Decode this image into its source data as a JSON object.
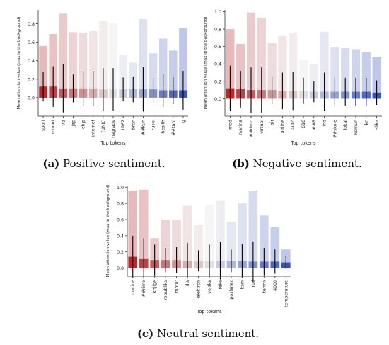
{
  "chart_data": [
    {
      "type": "bar",
      "panel": "a",
      "xlabel": "Top tokens",
      "ylabel": "Mean attention value (max in the background)",
      "ylim": [
        -0.2,
        0.95
      ],
      "yticks": [
        "0.0",
        "0.2",
        "0.4",
        "0.6",
        "0.8"
      ],
      "ytick_values": [
        0.0,
        0.2,
        0.4,
        0.6,
        0.8
      ],
      "categories": [
        "sport",
        "monet",
        "viz",
        "jap",
        "chip",
        "internet",
        "[UNK]",
        "nagrade",
        "1962",
        "bron",
        "##kun",
        "ruski",
        "health",
        "##tani",
        "ig"
      ],
      "series": [
        {
          "values": [
            0.56,
            0.69,
            0.91,
            0.71,
            0.7,
            0.72,
            0.83,
            0.81,
            0.46,
            0.38,
            0.85,
            0.48,
            0.64,
            0.51,
            0.75
          ]
        },
        {
          "values": [
            0.12,
            0.12,
            0.1,
            0.1,
            0.1,
            0.1,
            0.09,
            0.09,
            0.09,
            0.09,
            0.09,
            0.09,
            0.08,
            0.08,
            0.08
          ]
        }
      ],
      "error": [
        0.16,
        0.22,
        0.26,
        0.15,
        0.19,
        0.19,
        0.23,
        0.23,
        0.13,
        0.14,
        0.24,
        0.14,
        0.18,
        0.15,
        0.21
      ],
      "caption_label": "(a)",
      "caption_text": " Positive sentiment."
    },
    {
      "type": "bar",
      "panel": "b",
      "xlabel": "Top tokens",
      "ylabel": "Mean attention value (max in the background)",
      "ylim": [
        -0.2,
        1.02
      ],
      "yticks": [
        "0.0",
        "0.2",
        "0.4",
        "0.6",
        "0.8",
        "1.0"
      ],
      "ytick_values": [
        0.0,
        0.2,
        0.4,
        0.6,
        0.8,
        1.0
      ],
      "categories": [
        "mod",
        "marina",
        "##rimo",
        "virtual",
        "air",
        "airline",
        "auto",
        "616",
        "##8",
        "ind",
        "##skole",
        "lokal",
        "komun",
        "kn",
        "slika"
      ],
      "series": [
        {
          "values": [
            0.8,
            0.63,
            0.99,
            0.93,
            0.64,
            0.72,
            0.76,
            0.45,
            0.4,
            0.77,
            0.59,
            0.58,
            0.57,
            0.54,
            0.48
          ]
        },
        {
          "values": [
            0.12,
            0.11,
            0.1,
            0.1,
            0.1,
            0.09,
            0.09,
            0.09,
            0.08,
            0.08,
            0.08,
            0.08,
            0.08,
            0.08,
            0.07
          ]
        }
      ],
      "error": [
        0.26,
        0.21,
        0.26,
        0.26,
        0.16,
        0.21,
        0.22,
        0.15,
        0.12,
        0.22,
        0.17,
        0.16,
        0.16,
        0.16,
        0.14
      ],
      "caption_label": "(b)",
      "caption_text": " Negative sentiment."
    },
    {
      "type": "bar",
      "panel": "c",
      "xlabel": "Top tokens",
      "ylabel": "Mean attention value (max in the background)",
      "ylim": [
        -0.1,
        1.02
      ],
      "yticks": [
        "0.0",
        "0.2",
        "0.4",
        "0.6",
        "0.8",
        "1.0"
      ],
      "ytick_values": [
        0.0,
        0.2,
        0.4,
        0.6,
        0.8,
        1.0
      ],
      "categories": [
        "marine",
        "##rimo",
        "knjige",
        "republika",
        "motor",
        "dia",
        "elektron",
        "vojska",
        "reke",
        "poslanec",
        "kam",
        "rud",
        "termo",
        "4000",
        "temperature"
      ],
      "series": [
        {
          "values": [
            0.96,
            0.97,
            0.37,
            0.6,
            0.6,
            0.77,
            0.53,
            0.78,
            0.83,
            0.57,
            0.8,
            0.96,
            0.65,
            0.51,
            0.23
          ]
        },
        {
          "values": [
            0.14,
            0.12,
            0.1,
            0.1,
            0.1,
            0.09,
            0.09,
            0.09,
            0.09,
            0.09,
            0.09,
            0.08,
            0.08,
            0.08,
            0.07
          ]
        }
      ],
      "error": [
        0.26,
        0.25,
        0.19,
        0.15,
        0.16,
        0.22,
        0.13,
        0.2,
        0.23,
        0.14,
        0.21,
        0.25,
        0.17,
        0.15,
        0.08
      ],
      "caption_label": "(c)",
      "caption_text": " Neutral sentiment."
    }
  ]
}
